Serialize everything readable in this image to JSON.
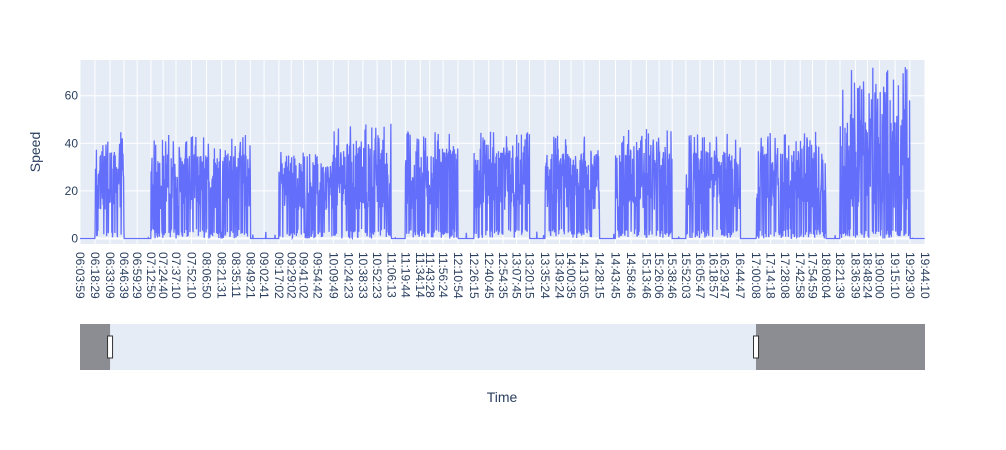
{
  "chart_data": {
    "type": "line",
    "title": "",
    "xlabel": "Time",
    "ylabel": "Speed",
    "ylim": [
      -2.3,
      75
    ],
    "y_ticks": [
      0,
      20,
      40,
      60
    ],
    "grid": true,
    "legend": "none",
    "series_color": "#636efa",
    "plot_bg": "#e5ecf6",
    "rangeslider": {
      "visible": true,
      "selected_start": "06:33:09",
      "selected_end": "17:00:08"
    },
    "x_tick_labels": [
      "06:03:59",
      "06:18:29",
      "06:33:09",
      "06:46:39",
      "06:59:29",
      "07:12:50",
      "07:24:40",
      "07:37:10",
      "07:52:10",
      "08:06:50",
      "08:21:31",
      "08:35:11",
      "08:49:21",
      "09:02:41",
      "09:17:02",
      "09:29:02",
      "09:41:02",
      "09:54:42",
      "10:09:49",
      "10:24:23",
      "10:38:33",
      "10:52:23",
      "11:06:13",
      "11:19:44",
      "11:34:14",
      "11:43:28",
      "11:56:24",
      "12:10:54",
      "12:26:15",
      "12:40:45",
      "12:54:35",
      "13:07:45",
      "13:20:15",
      "13:35:24",
      "13:49:24",
      "14:00:35",
      "14:13:05",
      "14:28:15",
      "14:43:45",
      "14:58:46",
      "15:13:46",
      "15:26:06",
      "15:38:46",
      "15:52:03",
      "16:05:47",
      "16:18:57",
      "16:29:47",
      "16:44:47",
      "17:00:08",
      "17:14:18",
      "17:28:08",
      "17:42:58",
      "17:54:59",
      "18:08:04",
      "18:21:39",
      "18:36:39",
      "18:48:24",
      "19:00:00",
      "19:15:10",
      "19:29:30",
      "19:44:10"
    ],
    "activity_segments": [
      {
        "start": "06:18:29",
        "end": "06:46:39",
        "peak": 45
      },
      {
        "start": "07:12:50",
        "end": "08:49:21",
        "peak": 44
      },
      {
        "start": "09:17:02",
        "end": "10:09:49",
        "peak": 37
      },
      {
        "start": "10:09:49",
        "end": "11:06:13",
        "peak": 49
      },
      {
        "start": "11:19:44",
        "end": "12:10:54",
        "peak": 47
      },
      {
        "start": "12:26:15",
        "end": "13:20:15",
        "peak": 45
      },
      {
        "start": "13:35:24",
        "end": "14:28:15",
        "peak": 44
      },
      {
        "start": "14:43:45",
        "end": "15:38:46",
        "peak": 46
      },
      {
        "start": "15:52:03",
        "end": "16:44:47",
        "peak": 45
      },
      {
        "start": "17:00:08",
        "end": "18:08:04",
        "peak": 45
      },
      {
        "start": "18:21:39",
        "end": "19:29:30",
        "peak": 72
      }
    ],
    "max_point": {
      "x": "19:25:00",
      "y": 72
    }
  }
}
